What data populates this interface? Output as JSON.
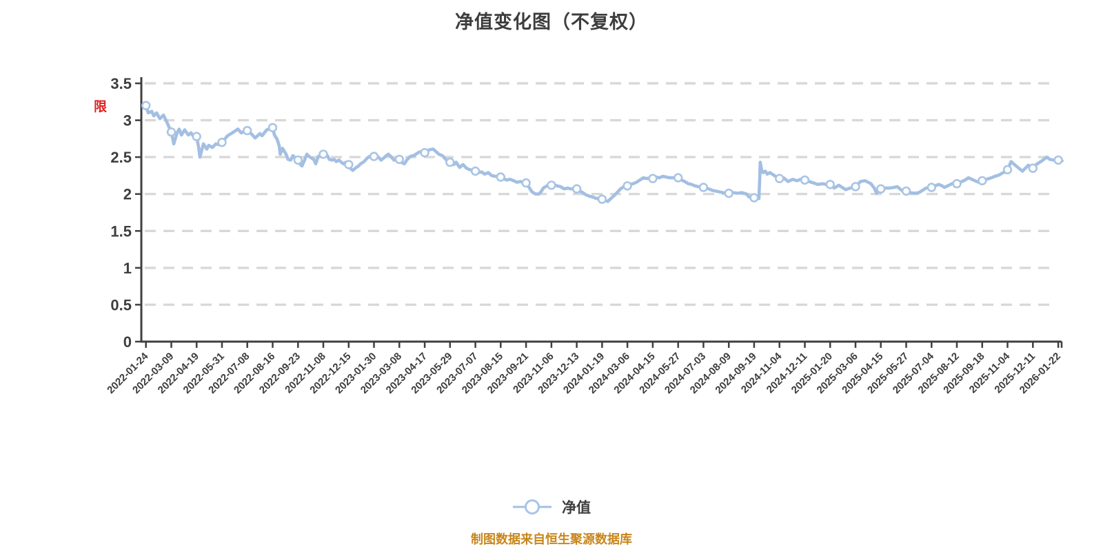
{
  "annotation": {
    "text": "限",
    "color": "#e02020"
  },
  "legend": {
    "label": "净值"
  },
  "footer": {
    "text": "制图数据来自恒生聚源数据库",
    "color": "#c8861a"
  },
  "colors": {
    "line": "#a3bfe2",
    "marker_fill": "#ffffff",
    "marker_ring": "#a9c4e4",
    "grid": "#d8d8d8",
    "axis": "#3f3f3f",
    "text": "#3e3e3e",
    "title": "#3d3d3d",
    "footer": "#c8861a",
    "annotation": "#e02020",
    "background": "#ffffff"
  },
  "chart_data": {
    "type": "line",
    "title": "净值变化图（不复权）",
    "xlabel": "",
    "ylabel": "",
    "ylim": [
      0,
      3.5
    ],
    "ytick_step": 0.5,
    "yticks": [
      "0",
      "0.5",
      "1",
      "1.5",
      "2",
      "2.5",
      "3",
      "3.5"
    ],
    "grid": "horizontal-dashed",
    "legend_position": "bottom",
    "x_label_rotation": -45,
    "categories": [
      "2022-01-24",
      "2022-03-09",
      "2022-04-19",
      "2022-05-31",
      "2022-07-08",
      "2022-08-16",
      "2022-09-23",
      "2022-11-08",
      "2022-12-15",
      "2023-01-30",
      "2023-03-08",
      "2023-04-17",
      "2023-05-29",
      "2023-07-07",
      "2023-08-15",
      "2023-09-21",
      "2023-11-06",
      "2023-12-13",
      "2024-01-19",
      "2024-03-06",
      "2024-04-15",
      "2024-05-27",
      "2024-07-03",
      "2024-08-09",
      "2024-09-19",
      "2024-11-04",
      "2024-12-11",
      "2025-01-20",
      "2025-03-06",
      "2025-04-15",
      "2025-05-27",
      "2025-07-04",
      "2025-08-12",
      "2025-09-18",
      "2025-11-04",
      "2025-12-11",
      "2026-01-22"
    ],
    "series": [
      {
        "name": "净值",
        "values": [
          3.2,
          2.84,
          2.78,
          2.7,
          2.86,
          2.9,
          2.46,
          2.54,
          2.4,
          2.51,
          2.47,
          2.56,
          2.43,
          2.31,
          2.23,
          2.15,
          2.12,
          2.07,
          1.93,
          2.11,
          2.21,
          2.22,
          2.09,
          2.01,
          1.95,
          2.21,
          2.19,
          2.13,
          2.1,
          2.07,
          2.04,
          2.09,
          2.14,
          2.18,
          2.33,
          2.35,
          2.46
        ]
      }
    ],
    "detail_path": [
      [
        0,
        3.2
      ],
      [
        0.09,
        3.1
      ],
      [
        0.23,
        3.12
      ],
      [
        0.31,
        3.06
      ],
      [
        0.42,
        3.1
      ],
      [
        0.55,
        3.02
      ],
      [
        0.69,
        3.07
      ],
      [
        0.82,
        2.98
      ],
      [
        1,
        2.84
      ],
      [
        1.1,
        2.68
      ],
      [
        1.23,
        2.83
      ],
      [
        1.31,
        2.88
      ],
      [
        1.4,
        2.8
      ],
      [
        1.53,
        2.87
      ],
      [
        1.67,
        2.8
      ],
      [
        1.78,
        2.83
      ],
      [
        1.86,
        2.79
      ],
      [
        2,
        2.78
      ],
      [
        2.08,
        2.63
      ],
      [
        2.13,
        2.5
      ],
      [
        2.27,
        2.68
      ],
      [
        2.4,
        2.61
      ],
      [
        2.48,
        2.66
      ],
      [
        2.62,
        2.63
      ],
      [
        2.76,
        2.68
      ],
      [
        2.86,
        2.67
      ],
      [
        3,
        2.7
      ],
      [
        3.22,
        2.79
      ],
      [
        3.41,
        2.83
      ],
      [
        3.63,
        2.88
      ],
      [
        3.76,
        2.83
      ],
      [
        4,
        2.86
      ],
      [
        4.12,
        2.83
      ],
      [
        4.31,
        2.76
      ],
      [
        4.5,
        2.82
      ],
      [
        4.58,
        2.79
      ],
      [
        4.77,
        2.87
      ],
      [
        5,
        2.9
      ],
      [
        5.07,
        2.8
      ],
      [
        5.18,
        2.74
      ],
      [
        5.26,
        2.65
      ],
      [
        5.3,
        2.54
      ],
      [
        5.39,
        2.62
      ],
      [
        5.53,
        2.54
      ],
      [
        5.61,
        2.47
      ],
      [
        5.71,
        2.46
      ],
      [
        5.8,
        2.52
      ],
      [
        5.88,
        2.49
      ],
      [
        6,
        2.46
      ],
      [
        6.07,
        2.41
      ],
      [
        6.16,
        2.38
      ],
      [
        6.26,
        2.46
      ],
      [
        6.35,
        2.54
      ],
      [
        6.43,
        2.51
      ],
      [
        6.62,
        2.47
      ],
      [
        6.7,
        2.41
      ],
      [
        6.8,
        2.51
      ],
      [
        6.89,
        2.52
      ],
      [
        7,
        2.54
      ],
      [
        7.16,
        2.52
      ],
      [
        7.24,
        2.47
      ],
      [
        7.34,
        2.46
      ],
      [
        7.43,
        2.47
      ],
      [
        7.51,
        2.44
      ],
      [
        7.62,
        2.46
      ],
      [
        7.71,
        2.43
      ],
      [
        7.79,
        2.41
      ],
      [
        7.89,
        2.43
      ],
      [
        8,
        2.4
      ],
      [
        8.06,
        2.35
      ],
      [
        8.16,
        2.32
      ],
      [
        8.3,
        2.36
      ],
      [
        8.39,
        2.38
      ],
      [
        8.47,
        2.41
      ],
      [
        8.61,
        2.44
      ],
      [
        8.74,
        2.49
      ],
      [
        8.88,
        2.52
      ],
      [
        9,
        2.51
      ],
      [
        9.04,
        2.55
      ],
      [
        9.11,
        2.52
      ],
      [
        9.2,
        2.49
      ],
      [
        9.28,
        2.46
      ],
      [
        9.39,
        2.49
      ],
      [
        9.48,
        2.52
      ],
      [
        9.57,
        2.54
      ],
      [
        9.66,
        2.51
      ],
      [
        9.79,
        2.46
      ],
      [
        9.88,
        2.47
      ],
      [
        10,
        2.47
      ],
      [
        10.07,
        2.43
      ],
      [
        10.2,
        2.41
      ],
      [
        10.29,
        2.46
      ],
      [
        10.43,
        2.51
      ],
      [
        10.56,
        2.52
      ],
      [
        10.65,
        2.54
      ],
      [
        10.79,
        2.57
      ],
      [
        10.88,
        2.57
      ],
      [
        11,
        2.56
      ],
      [
        11.06,
        2.58
      ],
      [
        11.2,
        2.6
      ],
      [
        11.33,
        2.61
      ],
      [
        11.43,
        2.58
      ],
      [
        11.56,
        2.54
      ],
      [
        11.7,
        2.52
      ],
      [
        11.83,
        2.47
      ],
      [
        11.92,
        2.44
      ],
      [
        12,
        2.43
      ],
      [
        12.15,
        2.4
      ],
      [
        12.24,
        2.43
      ],
      [
        12.38,
        2.36
      ],
      [
        12.51,
        2.4
      ],
      [
        12.65,
        2.35
      ],
      [
        12.78,
        2.33
      ],
      [
        12.92,
        2.32
      ],
      [
        13,
        2.31
      ],
      [
        13.1,
        2.29
      ],
      [
        13.24,
        2.3
      ],
      [
        13.37,
        2.27
      ],
      [
        13.51,
        2.29
      ],
      [
        13.64,
        2.25
      ],
      [
        13.78,
        2.24
      ],
      [
        13.92,
        2.24
      ],
      [
        14,
        2.23
      ],
      [
        14.1,
        2.21
      ],
      [
        14.23,
        2.19
      ],
      [
        14.37,
        2.2
      ],
      [
        14.51,
        2.18
      ],
      [
        14.64,
        2.16
      ],
      [
        14.78,
        2.17
      ],
      [
        14.91,
        2.15
      ],
      [
        15,
        2.15
      ],
      [
        15.1,
        2.1
      ],
      [
        15.23,
        2.03
      ],
      [
        15.37,
        2
      ],
      [
        15.5,
        2
      ],
      [
        15.59,
        2.03
      ],
      [
        15.68,
        2.08
      ],
      [
        15.82,
        2.11
      ],
      [
        16,
        2.12
      ],
      [
        16.09,
        2.13
      ],
      [
        16.23,
        2.11
      ],
      [
        16.36,
        2.1
      ],
      [
        16.5,
        2.07
      ],
      [
        16.64,
        2.08
      ],
      [
        16.77,
        2.07
      ],
      [
        17,
        2.07
      ],
      [
        17.09,
        2.05
      ],
      [
        17.23,
        2.02
      ],
      [
        17.36,
        1.99
      ],
      [
        17.5,
        1.97
      ],
      [
        17.63,
        1.96
      ],
      [
        17.77,
        1.94
      ],
      [
        17.91,
        1.94
      ],
      [
        18,
        1.93
      ],
      [
        18.13,
        1.91
      ],
      [
        18.23,
        1.9
      ],
      [
        18.32,
        1.93
      ],
      [
        18.45,
        1.97
      ],
      [
        18.59,
        2.02
      ],
      [
        18.73,
        2.07
      ],
      [
        18.86,
        2.1
      ],
      [
        19,
        2.11
      ],
      [
        19.08,
        2.13
      ],
      [
        19.22,
        2.14
      ],
      [
        19.36,
        2.16
      ],
      [
        19.49,
        2.19
      ],
      [
        19.63,
        2.22
      ],
      [
        19.77,
        2.21
      ],
      [
        19.9,
        2.22
      ],
      [
        20,
        2.21
      ],
      [
        20.13,
        2.23
      ],
      [
        20.26,
        2.22
      ],
      [
        20.4,
        2.24
      ],
      [
        20.54,
        2.23
      ],
      [
        20.67,
        2.22
      ],
      [
        20.81,
        2.22
      ],
      [
        21,
        2.22
      ],
      [
        21.13,
        2.19
      ],
      [
        21.26,
        2.17
      ],
      [
        21.4,
        2.14
      ],
      [
        21.53,
        2.13
      ],
      [
        21.67,
        2.11
      ],
      [
        21.8,
        2.1
      ],
      [
        22,
        2.09
      ],
      [
        22.08,
        2.08
      ],
      [
        22.21,
        2.07
      ],
      [
        22.35,
        2.05
      ],
      [
        22.48,
        2.04
      ],
      [
        22.62,
        2.03
      ],
      [
        22.76,
        2.02
      ],
      [
        23,
        2.01
      ],
      [
        23.16,
        2.02
      ],
      [
        23.35,
        2.01
      ],
      [
        23.51,
        2.02
      ],
      [
        23.7,
        2
      ],
      [
        23.8,
        1.96
      ],
      [
        24,
        1.95
      ],
      [
        24.11,
        1.94
      ],
      [
        24.19,
        1.94
      ],
      [
        24.22,
        2.2
      ],
      [
        24.24,
        2.43
      ],
      [
        24.3,
        2.32
      ],
      [
        24.35,
        2.29
      ],
      [
        24.44,
        2.31
      ],
      [
        24.52,
        2.27
      ],
      [
        24.62,
        2.29
      ],
      [
        24.76,
        2.26
      ],
      [
        24.89,
        2.23
      ],
      [
        25,
        2.21
      ],
      [
        25.16,
        2.22
      ],
      [
        25.34,
        2.17
      ],
      [
        25.52,
        2.2
      ],
      [
        25.7,
        2.18
      ],
      [
        25.84,
        2.2
      ],
      [
        26,
        2.19
      ],
      [
        26.16,
        2.17
      ],
      [
        26.34,
        2.15
      ],
      [
        26.52,
        2.13
      ],
      [
        26.7,
        2.14
      ],
      [
        26.84,
        2.13
      ],
      [
        27,
        2.13
      ],
      [
        27.16,
        2.08
      ],
      [
        27.34,
        2.12
      ],
      [
        27.52,
        2.08
      ],
      [
        27.61,
        2.06
      ],
      [
        27.79,
        2.08
      ],
      [
        28,
        2.1
      ],
      [
        28.2,
        2.17
      ],
      [
        28.38,
        2.18
      ],
      [
        28.61,
        2.14
      ],
      [
        28.74,
        2.08
      ],
      [
        28.83,
        2.01
      ],
      [
        29,
        2.07
      ],
      [
        29.14,
        2.08
      ],
      [
        29.33,
        2.08
      ],
      [
        29.51,
        2.09
      ],
      [
        29.65,
        2.1
      ],
      [
        29.82,
        2.05
      ],
      [
        30,
        2.04
      ],
      [
        30.15,
        2.02
      ],
      [
        30.33,
        2.01
      ],
      [
        30.51,
        2.02
      ],
      [
        30.69,
        2.06
      ],
      [
        30.78,
        2.08
      ],
      [
        31,
        2.09
      ],
      [
        31.14,
        2.11
      ],
      [
        31.28,
        2.13
      ],
      [
        31.42,
        2.11
      ],
      [
        31.51,
        2.09
      ],
      [
        31.69,
        2.12
      ],
      [
        31.87,
        2.15
      ],
      [
        32,
        2.14
      ],
      [
        32.14,
        2.16
      ],
      [
        32.32,
        2.19
      ],
      [
        32.46,
        2.22
      ],
      [
        32.59,
        2.2
      ],
      [
        32.78,
        2.17
      ],
      [
        32.87,
        2.16
      ],
      [
        33,
        2.18
      ],
      [
        33.18,
        2.2
      ],
      [
        33.36,
        2.22
      ],
      [
        33.5,
        2.24
      ],
      [
        33.68,
        2.26
      ],
      [
        33.77,
        2.28
      ],
      [
        33.9,
        2.3
      ],
      [
        34,
        2.33
      ],
      [
        34.14,
        2.44
      ],
      [
        34.27,
        2.4
      ],
      [
        34.41,
        2.36
      ],
      [
        34.59,
        2.31
      ],
      [
        34.82,
        2.39
      ],
      [
        35,
        2.35
      ],
      [
        35.13,
        2.4
      ],
      [
        35.22,
        2.42
      ],
      [
        35.36,
        2.45
      ],
      [
        35.54,
        2.5
      ],
      [
        35.67,
        2.47
      ],
      [
        35.81,
        2.46
      ],
      [
        36,
        2.46
      ],
      [
        36.15,
        2.45
      ]
    ]
  }
}
